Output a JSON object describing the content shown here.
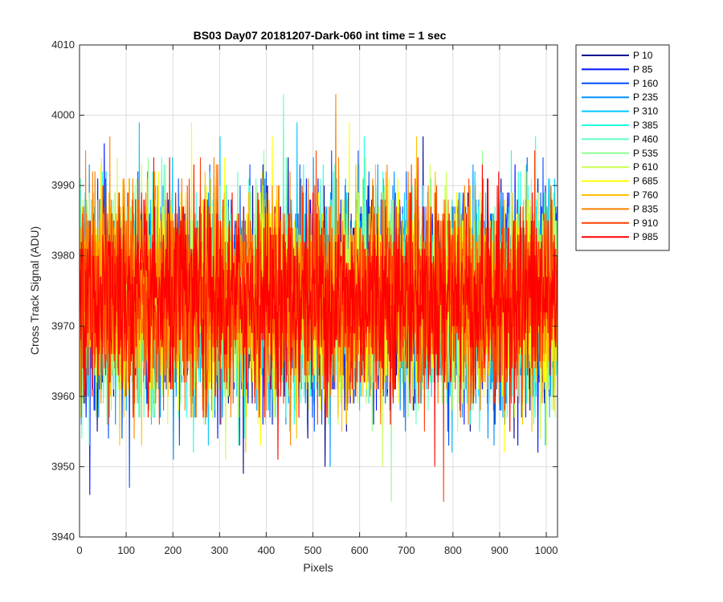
{
  "chart_data": {
    "type": "line",
    "title": "BS03 Day07 20181207-Dark-060 int time = 1 sec",
    "xlabel": "Pixels",
    "ylabel": "Cross Track Signal (ADU)",
    "xlim": [
      0,
      1024
    ],
    "ylim": [
      3940,
      4010
    ],
    "xticks": [
      0,
      100,
      200,
      300,
      400,
      500,
      600,
      700,
      800,
      900,
      1000
    ],
    "yticks": [
      3940,
      3950,
      3960,
      3970,
      3980,
      3990,
      4000,
      4010
    ],
    "grid": true,
    "legend_position": "outside-top-right",
    "series_stats": {
      "mean": 3974,
      "approx_range": [
        3944,
        4004
      ],
      "n_points": 1024
    },
    "series": [
      {
        "name": "P 10",
        "color": "#00008f"
      },
      {
        "name": "P 85",
        "color": "#0010ff"
      },
      {
        "name": "P 160",
        "color": "#0050ff"
      },
      {
        "name": "P 235",
        "color": "#0090ff"
      },
      {
        "name": "P 310",
        "color": "#00c8ff"
      },
      {
        "name": "P 385",
        "color": "#20ffe0"
      },
      {
        "name": "P 460",
        "color": "#60ffc0"
      },
      {
        "name": "P 535",
        "color": "#90ff90"
      },
      {
        "name": "P 610",
        "color": "#c8ff50"
      },
      {
        "name": "P 685",
        "color": "#ffff00"
      },
      {
        "name": "P 760",
        "color": "#ffc000"
      },
      {
        "name": "P 835",
        "color": "#ff8000"
      },
      {
        "name": "P 910",
        "color": "#ff4000"
      },
      {
        "name": "P 985",
        "color": "#ff0000"
      }
    ]
  }
}
